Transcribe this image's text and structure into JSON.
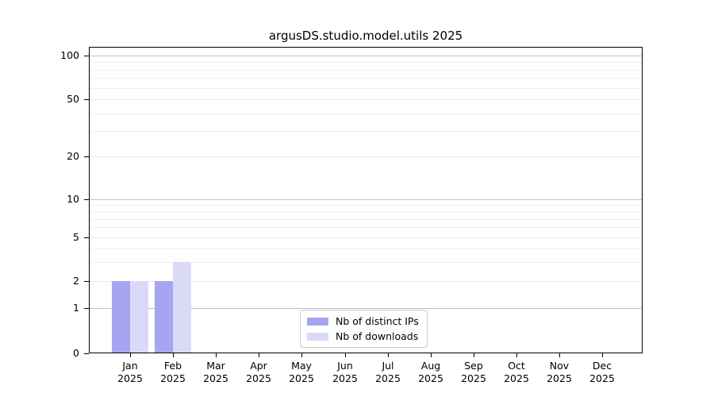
{
  "title": "argusDS.studio.model.utils 2025",
  "chart_data": {
    "type": "bar",
    "title": "argusDS.studio.model.utils 2025",
    "categories": [
      "Jan",
      "Feb",
      "Mar",
      "Apr",
      "May",
      "Jun",
      "Jul",
      "Aug",
      "Sep",
      "Oct",
      "Nov",
      "Dec"
    ],
    "year_label": "2025",
    "series": [
      {
        "name": "Nb of distinct IPs",
        "color": "#a5a5f2",
        "values": [
          2,
          2,
          0,
          0,
          0,
          0,
          0,
          0,
          0,
          0,
          0,
          0
        ]
      },
      {
        "name": "Nb of downloads",
        "color": "#dadaf8",
        "values": [
          2,
          3,
          0,
          0,
          0,
          0,
          0,
          0,
          0,
          0,
          0,
          0
        ]
      }
    ],
    "xlabel": "",
    "ylabel": "",
    "y_axis": {
      "scale": "symlog",
      "major_ticks": [
        0,
        1,
        2,
        5,
        10,
        20,
        50,
        100
      ],
      "power10_ticks": [
        1,
        10,
        100
      ],
      "minor_gridline_values": [
        3,
        4,
        6,
        7,
        8,
        9,
        30,
        40,
        60,
        70,
        80,
        90
      ],
      "ylim": [
        0,
        115
      ]
    },
    "grid": "on",
    "legend_position": "bottom-center"
  },
  "legend": {
    "entries": [
      {
        "label": "Nb of distinct IPs"
      },
      {
        "label": "Nb of downloads"
      }
    ]
  }
}
